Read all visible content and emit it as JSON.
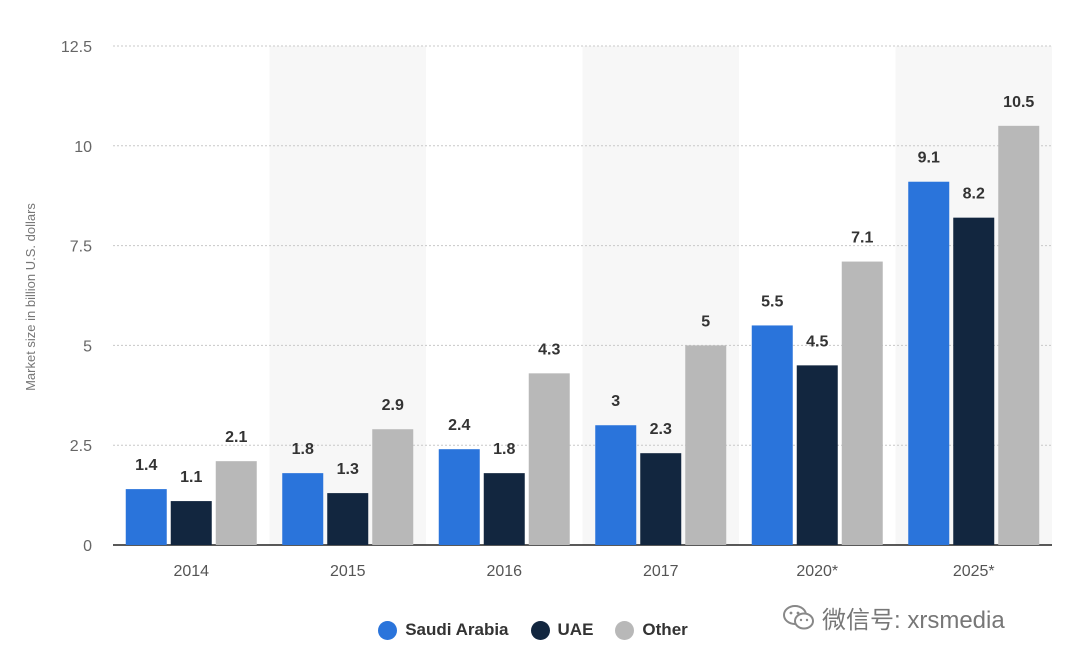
{
  "chart_data": {
    "type": "bar",
    "categories": [
      "2014",
      "2015",
      "2016",
      "2017",
      "2020*",
      "2025*"
    ],
    "series": [
      {
        "name": "Saudi Arabia",
        "values": [
          1.4,
          1.8,
          2.4,
          3,
          5.5,
          9.1
        ],
        "color": "#2a74db",
        "labels": [
          "1.4",
          "1.8",
          "2.4",
          "3",
          "5.5",
          "9.1"
        ]
      },
      {
        "name": "UAE",
        "values": [
          1.1,
          1.3,
          1.8,
          2.3,
          4.5,
          8.2
        ],
        "color": "#12263f",
        "labels": [
          "1.1",
          "1.3",
          "1.8",
          "2.3",
          "4.5",
          "8.2"
        ]
      },
      {
        "name": "Other",
        "values": [
          2.1,
          2.9,
          4.3,
          5,
          7.1,
          10.5
        ],
        "color": "#b8b8b8",
        "labels": [
          "2.1",
          "2.9",
          "4.3",
          "5",
          "7.1",
          "10.5"
        ]
      }
    ],
    "ylabel": "Market size in billion U.S. dollars",
    "xlabel": "",
    "ylim": [
      0,
      12.5
    ],
    "yticks": [
      0,
      2.5,
      5,
      7.5,
      10,
      12.5
    ],
    "ytick_labels": [
      "0",
      "2.5",
      "5",
      "7.5",
      "10",
      "12.5"
    ],
    "grid": true,
    "legend_position": "bottom-center"
  },
  "watermark": {
    "text": "微信号: xrsmedia"
  }
}
